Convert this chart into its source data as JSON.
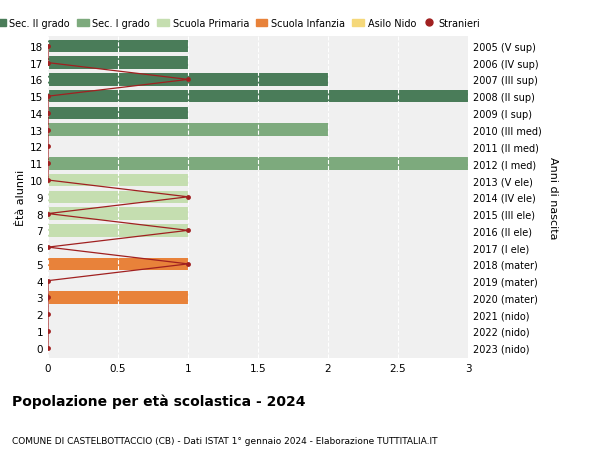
{
  "ages": [
    18,
    17,
    16,
    15,
    14,
    13,
    12,
    11,
    10,
    9,
    8,
    7,
    6,
    5,
    4,
    3,
    2,
    1,
    0
  ],
  "right_labels": [
    "2005 (V sup)",
    "2006 (IV sup)",
    "2007 (III sup)",
    "2008 (II sup)",
    "2009 (I sup)",
    "2010 (III med)",
    "2011 (II med)",
    "2012 (I med)",
    "2013 (V ele)",
    "2014 (IV ele)",
    "2015 (III ele)",
    "2016 (II ele)",
    "2017 (I ele)",
    "2018 (mater)",
    "2019 (mater)",
    "2020 (mater)",
    "2021 (nido)",
    "2022 (nido)",
    "2023 (nido)"
  ],
  "bar_values": [
    1,
    1,
    2,
    3,
    1,
    2,
    0,
    3,
    1,
    1,
    1,
    1,
    0,
    1,
    0,
    1,
    0,
    0,
    0
  ],
  "bar_colors": [
    "#4a7c59",
    "#4a7c59",
    "#4a7c59",
    "#4a7c59",
    "#4a7c59",
    "#7daa7d",
    "#7daa7d",
    "#7daa7d",
    "#c5deb0",
    "#c5deb0",
    "#c5deb0",
    "#c5deb0",
    "#c5deb0",
    "#e8823a",
    "#e8823a",
    "#e8823a",
    "#f5d87a",
    "#f5d87a",
    "#f5d87a"
  ],
  "stranieri_y": [
    18,
    17,
    16,
    15,
    14,
    13,
    12,
    11,
    10,
    9,
    8,
    7,
    6,
    5,
    4,
    3,
    2,
    1,
    0
  ],
  "stranieri_x": [
    0,
    0,
    1,
    0,
    0,
    0,
    0,
    0,
    0,
    1,
    0,
    1,
    0,
    1,
    0,
    0,
    0,
    0,
    0
  ],
  "stranieri_color": "#a02020",
  "legend_labels": [
    "Sec. II grado",
    "Sec. I grado",
    "Scuola Primaria",
    "Scuola Infanzia",
    "Asilo Nido",
    "Stranieri"
  ],
  "legend_colors": [
    "#4a7c59",
    "#7daa7d",
    "#c5deb0",
    "#e8823a",
    "#f5d87a",
    "#a02020"
  ],
  "ylabel_left": "Ètà alunni",
  "ylabel_right": "Anni di nascita",
  "title": "Popolazione per età scolastica - 2024",
  "subtitle": "COMUNE DI CASTELBOTTACCIO (CB) - Dati ISTAT 1° gennaio 2024 - Elaborazione TUTTITALIA.IT",
  "xlim": [
    0,
    3.0
  ],
  "xticks": [
    0,
    0.5,
    1.0,
    1.5,
    2.0,
    2.5,
    3.0
  ],
  "plot_bg": "#f0f0f0",
  "fig_bg": "#ffffff",
  "grid_color": "#ffffff"
}
